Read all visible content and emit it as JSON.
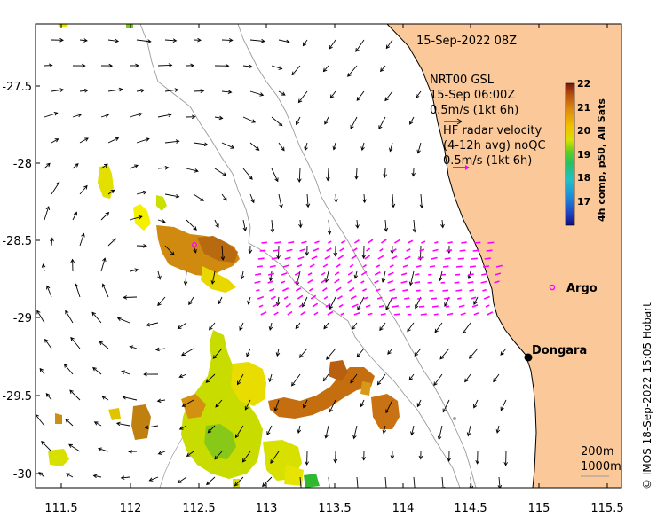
{
  "map": {
    "timestamp": "15-Sep-2022 08Z",
    "wind_legend": {
      "line1": "NRT00 GSL",
      "line2": "15-Sep 06:00Z",
      "line3": "0.5m/s (1kt 6h)"
    },
    "radar_legend": {
      "line1": "HF radar velocity",
      "line2": "(4-12h avg) noQC",
      "line3": "0.5m/s (1kt 6h)"
    },
    "colorbar": {
      "label": "4h comp, p50, All Sats",
      "ticks": [
        "22",
        "21",
        "20",
        "19",
        "18",
        "17"
      ],
      "range": [
        16,
        22
      ]
    },
    "places": {
      "argo": "Argo",
      "dongara": "Dongara"
    },
    "depth_legend": {
      "line1": "200m",
      "line2": "1000m"
    },
    "credit": "© IMOS 18-Sep-2022 15:05 Hobart",
    "x_ticks": [
      "111.5",
      "112",
      "112.5",
      "113",
      "113.5",
      "114",
      "114.5",
      "115",
      "115.5"
    ],
    "y_ticks": [
      "-27.5",
      "-28",
      "-28.5",
      "-29",
      "-29.5",
      "-30"
    ],
    "colors": {
      "land": "#fbc999",
      "radar": "#ff00ff",
      "arrows": "#000000"
    }
  }
}
